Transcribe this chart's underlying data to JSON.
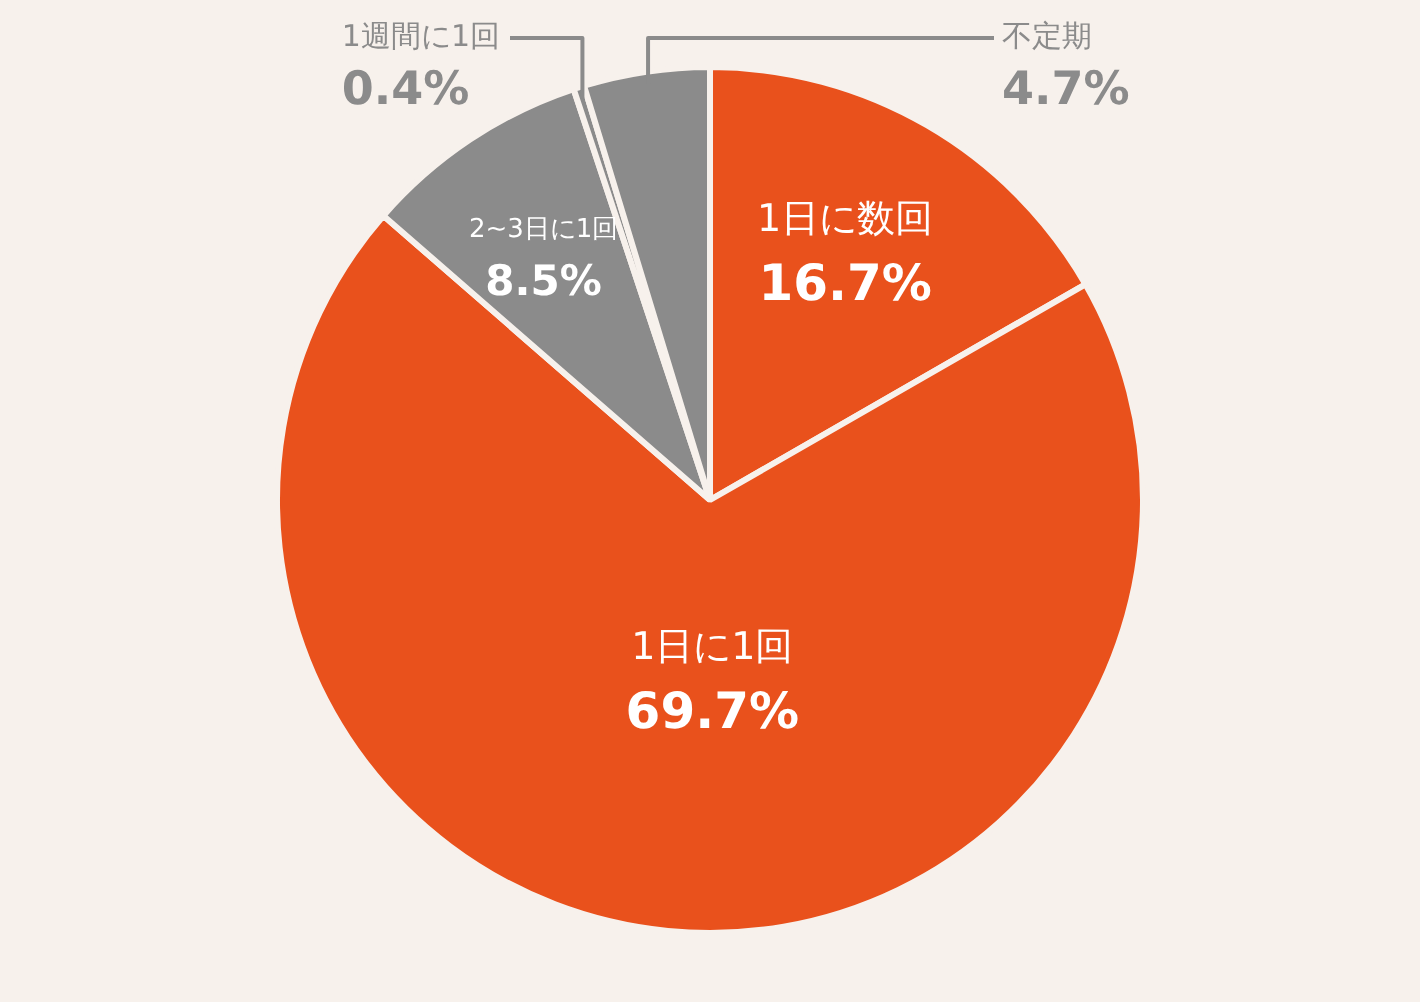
{
  "chart_data": {
    "type": "pie",
    "categories": [
      "1日に数回",
      "1日に1回",
      "2~3日に1回",
      "1週間に1回",
      "不定期"
    ],
    "values": [
      16.7,
      69.7,
      8.5,
      0.4,
      4.7
    ],
    "value_labels": [
      "16.7%",
      "69.7%",
      "8.5%",
      "0.4%",
      "4.7%"
    ],
    "colors": [
      "#e9511c",
      "#e9511c",
      "#8b8b8b",
      "#8b8b8b",
      "#8b8b8b"
    ]
  }
}
